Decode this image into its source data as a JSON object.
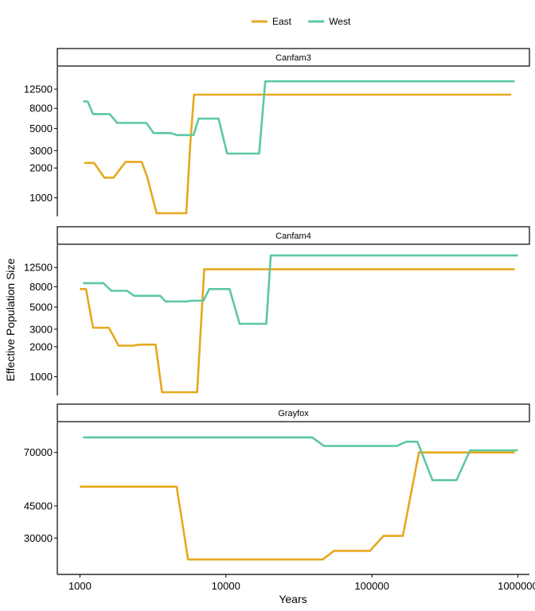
{
  "chart_data": {
    "type": "line",
    "xlabel": "Years",
    "ylabel": "Effective Population Size",
    "x_scale": "log",
    "xlim": [
      700,
      1200000
    ],
    "x_ticks": [
      1000,
      10000,
      100000,
      1000000
    ],
    "x_tick_labels": [
      "1000",
      "10000",
      "100000",
      "1000000"
    ],
    "legend": {
      "placement": "top",
      "entries": [
        {
          "name": "East",
          "color": "#E6A81F"
        },
        {
          "name": "West",
          "color": "#5DC8A0"
        }
      ]
    },
    "facets": [
      {
        "label": "Canfam3",
        "y_scale": "log",
        "ylim": [
          650,
          21000
        ],
        "y_ticks": [
          1000,
          2000,
          3000,
          5000,
          8000,
          12500
        ],
        "y_tick_labels": [
          "1000",
          "2000",
          "3000",
          "5000",
          "8000",
          "12500"
        ],
        "series": [
          {
            "name": "East",
            "color": "#E6A81F",
            "x": [
              1070,
              1250,
              1470,
              1700,
              2050,
              2650,
              2900,
              3350,
              5350,
              5700,
              6050,
              900000
            ],
            "y": [
              2250,
              2250,
              1600,
              1600,
              2300,
              2300,
              1600,
              700,
              700,
              3500,
              11000,
              11000
            ]
          },
          {
            "name": "West",
            "color": "#5DC8A0",
            "x": [
              1050,
              1130,
              1230,
              1600,
              1800,
              2850,
              3200,
              4200,
              4600,
              6000,
              6500,
              8900,
              10200,
              16900,
              18600,
              950000
            ],
            "y": [
              9400,
              9400,
              7000,
              7000,
              5700,
              5700,
              4500,
              4500,
              4300,
              4300,
              6300,
              6300,
              2800,
              2800,
              15000,
              15000
            ]
          }
        ]
      },
      {
        "label": "Canfam4",
        "y_scale": "log",
        "ylim": [
          650,
          21000
        ],
        "y_ticks": [
          1000,
          2000,
          3000,
          5000,
          8000,
          12500
        ],
        "y_tick_labels": [
          "1000",
          "2000",
          "3000",
          "5000",
          "8000",
          "12500"
        ],
        "series": [
          {
            "name": "East",
            "color": "#E6A81F",
            "x": [
              1000,
              1100,
              1230,
              1580,
              1840,
              2300,
              2550,
              3300,
              3650,
              6350,
              7100,
              950000
            ],
            "y": [
              7600,
              7600,
              3100,
              3100,
              2050,
              2050,
              2100,
              2100,
              700,
              700,
              12000,
              12000
            ]
          },
          {
            "name": "West",
            "color": "#5DC8A0",
            "x": [
              1050,
              1450,
              1640,
              2100,
              2350,
              3550,
              3850,
              5450,
              5700,
              7000,
              7700,
              10600,
              12400,
              18900,
              20300,
              1000000
            ],
            "y": [
              8700,
              8700,
              7300,
              7300,
              6500,
              6500,
              5700,
              5700,
              5800,
              5800,
              7600,
              7600,
              3400,
              3400,
              16500,
              16500
            ]
          }
        ]
      },
      {
        "label": "Grayfox",
        "y_scale": "linear",
        "ylim": [
          13000,
          84000
        ],
        "y_ticks": [
          30000,
          45000,
          70000
        ],
        "y_tick_labels": [
          "30000",
          "45000",
          "70000"
        ],
        "series": [
          {
            "name": "East",
            "color": "#E6A81F",
            "x": [
              1000,
              4600,
              5500,
              46000,
              55000,
              97000,
              120000,
              163000,
              210000,
              950000
            ],
            "y": [
              54000,
              54000,
              20000,
              20000,
              24000,
              24000,
              31000,
              31000,
              70000,
              70000
            ]
          },
          {
            "name": "West",
            "color": "#5DC8A0",
            "x": [
              1050,
              39000,
              47000,
              148000,
              172000,
              205000,
              260000,
              380000,
              470000,
              1000000
            ],
            "y": [
              77000,
              77000,
              73000,
              73000,
              75000,
              75000,
              57000,
              57000,
              71000,
              71000
            ]
          }
        ]
      }
    ]
  }
}
